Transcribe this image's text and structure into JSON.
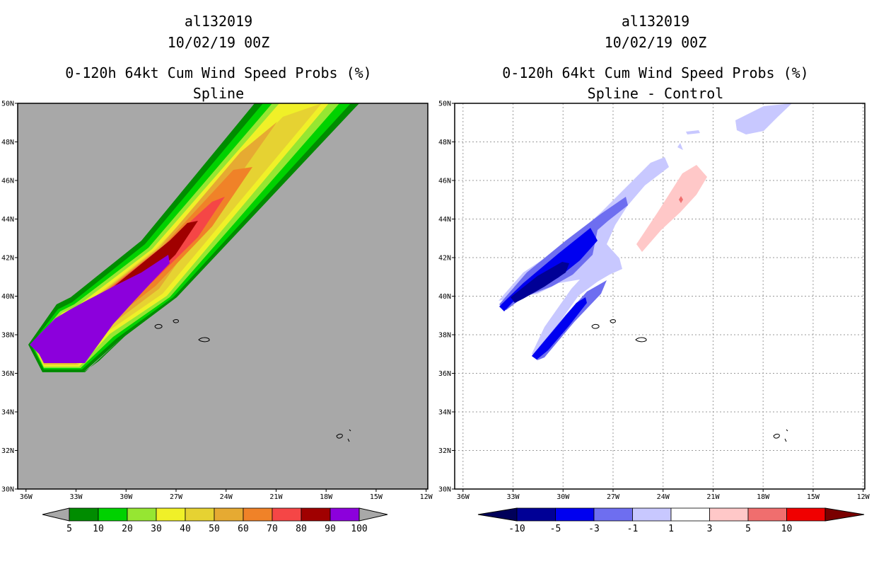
{
  "panels": [
    {
      "id": "left",
      "storm_id": "al132019",
      "date": "10/02/19 00Z",
      "title": "0-120h 64kt Cum Wind Speed Probs (%)",
      "subtitle": "Spline",
      "background": "#a8a8a8",
      "colorbar": {
        "labels": [
          "5",
          "10",
          "20",
          "30",
          "40",
          "50",
          "60",
          "70",
          "80",
          "90",
          "100"
        ],
        "colors": [
          "#008c00",
          "#00d200",
          "#96e632",
          "#f0f028",
          "#e6d232",
          "#e6aa32",
          "#f08228",
          "#f54646",
          "#a00000",
          "#8c00dc"
        ]
      }
    },
    {
      "id": "right",
      "storm_id": "al132019",
      "date": "10/02/19 00Z",
      "title": "0-120h 64kt Cum Wind Speed Probs (%)",
      "subtitle": "Spline - Control",
      "background": "#ffffff",
      "colorbar": {
        "labels": [
          "-10",
          "-5",
          "-3",
          "-1",
          "1",
          "3",
          "5",
          "10"
        ],
        "colors": [
          "#000096",
          "#0000f0",
          "#6e6ef0",
          "#c8c8ff",
          "#ffffff",
          "#ffc8c8",
          "#f06e6e",
          "#f00000"
        ],
        "left_arrow": "#00005a",
        "right_arrow": "#7a0000"
      }
    }
  ],
  "chart_data": {
    "type": "heatmap",
    "x_ticks": [
      "36W",
      "33W",
      "30W",
      "27W",
      "24W",
      "21W",
      "18W",
      "15W",
      "12W"
    ],
    "y_ticks": [
      "30N",
      "32N",
      "34N",
      "36N",
      "38N",
      "40N",
      "42N",
      "44N",
      "46N",
      "48N",
      "50N"
    ],
    "xlim": [
      -36.5,
      -11.9
    ],
    "ylim": [
      30,
      50
    ],
    "grid": true
  }
}
